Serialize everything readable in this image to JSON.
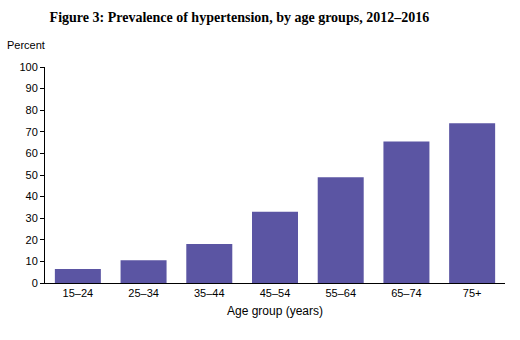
{
  "chart_data": {
    "type": "bar",
    "title": "Figure 3: Prevalence of hypertension, by age groups, 2012–2016",
    "ylabel": "Percent",
    "xlabel": "Age group (years)",
    "categories": [
      "15–24",
      "25–34",
      "35–44",
      "45–54",
      "55–64",
      "65–74",
      "75+"
    ],
    "values": [
      6.5,
      10.5,
      18,
      33,
      49,
      65.5,
      74
    ],
    "color": "#5b55a3",
    "ylim": [
      0,
      100
    ],
    "yticks": [
      0,
      10,
      20,
      30,
      40,
      50,
      60,
      70,
      80,
      90,
      100
    ],
    "grid": false
  }
}
